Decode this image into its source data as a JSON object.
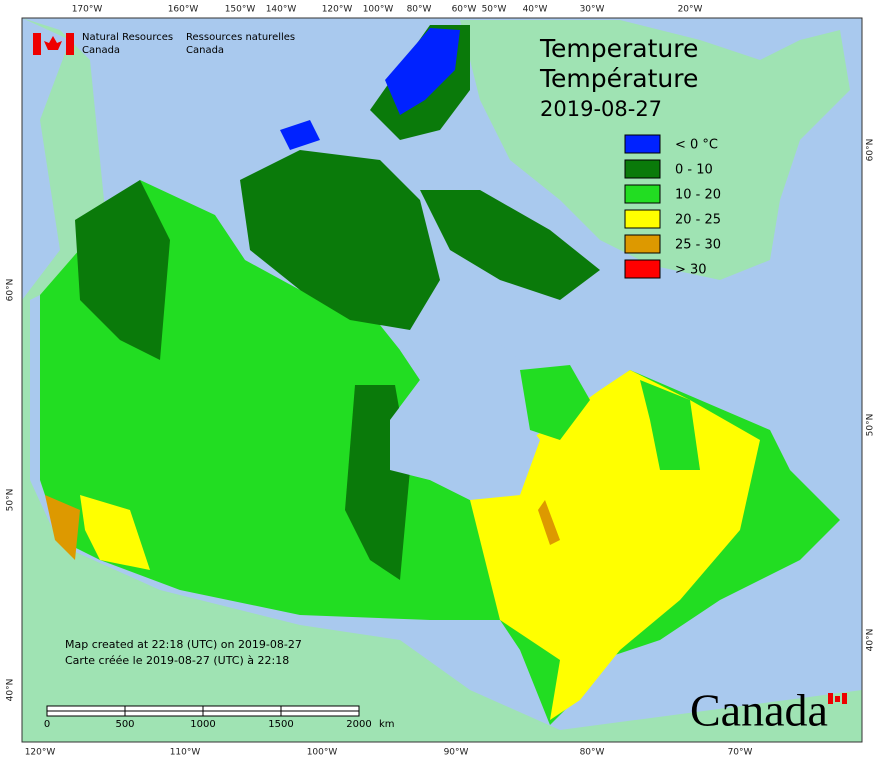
{
  "header": {
    "org_en": [
      "Natural Resources",
      "Canada"
    ],
    "org_fr": [
      "Ressources naturelles",
      "Canada"
    ]
  },
  "title": {
    "en": "Temperature",
    "fr": "Température",
    "date": "2019-08-27"
  },
  "legend": [
    {
      "label": "< 0 °C",
      "color": "#0022ff"
    },
    {
      "label": "0 - 10",
      "color": "#0a7a0a"
    },
    {
      "label": "10 - 20",
      "color": "#22dd22"
    },
    {
      "label": "20 - 25",
      "color": "#ffff00"
    },
    {
      "label": "25 - 30",
      "color": "#dd9900"
    },
    {
      "label": "> 30",
      "color": "#ff0000"
    }
  ],
  "graticule": {
    "top": [
      "170°W",
      "160°W",
      "150°W",
      "140°W",
      "120°W",
      "100°W",
      "80°W",
      "60°W",
      "50°W",
      "40°W",
      "30°W",
      "20°W"
    ],
    "bottom": [
      "120°W",
      "110°W",
      "100°W",
      "90°W",
      "80°W",
      "70°W"
    ],
    "left": [
      "60°N",
      "50°N",
      "40°N"
    ],
    "right": [
      "60°N",
      "50°N",
      "40°N"
    ]
  },
  "credits": [
    "Map created at 22:18 (UTC) on 2019-08-27",
    "Carte créée le 2019-08-27 (UTC) à 22:18"
  ],
  "scale_bar": {
    "ticks": [
      0,
      500,
      1000,
      1500,
      2000
    ],
    "unit": "km"
  },
  "wordmark": "Canada"
}
